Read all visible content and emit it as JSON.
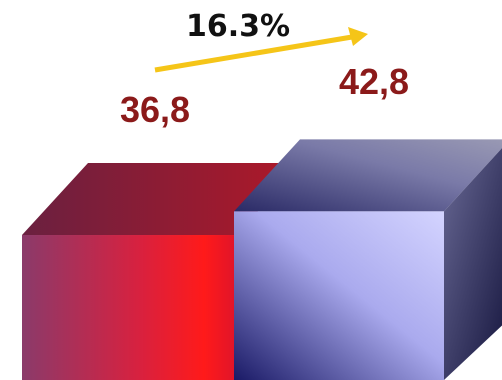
{
  "chart_data": {
    "type": "bar",
    "style": "3d-cube",
    "values": [
      36.8,
      42.8
    ],
    "value_labels": [
      "36,8",
      "42,8"
    ],
    "growth_label": "16.3%",
    "grid": false,
    "legend": "none"
  },
  "colors": {
    "label_text": "#8b1a1a",
    "arrow": "#f5c518",
    "bar1_front_left": "#8b3a6a",
    "bar1_front_right": "#ff1a1a",
    "bar1_top": "#7a2a4a",
    "bar2_front_light": "#ccccff",
    "bar2_front_dark": "#1a1a66",
    "bar2_top": "#7a7a9a",
    "bar2_side": "#2a2a55"
  }
}
